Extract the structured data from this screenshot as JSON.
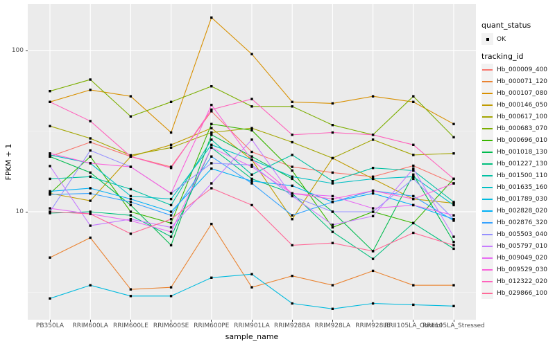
{
  "figure": {
    "y_axis": {
      "title": "FPKM + 1",
      "tick_labels": [
        "100",
        "10"
      ],
      "tick_values": [
        100,
        10
      ],
      "scale": "log10"
    },
    "x_axis": {
      "title": "sample_name"
    },
    "legend": {
      "quant_status": {
        "title": "quant_status",
        "items": [
          {
            "label": "OK",
            "glyph": "black-square-point"
          }
        ]
      },
      "tracking_id": {
        "title": "tracking_id"
      }
    },
    "colors": {
      "panel_background": "#EBEBEB",
      "gridline": "#FFFFFF",
      "point": "#000000",
      "axis_text": "#4D4D4D"
    }
  },
  "chart_data": {
    "type": "line",
    "title": "",
    "xlabel": "sample_name",
    "ylabel": "FPKM + 1",
    "y_scale": "log10",
    "ylim": [
      2.1,
      200
    ],
    "grid": "white major gridlines at 10 and 100, minor at 3.16 and 31.6, vertical major per category",
    "legend_position": "right",
    "point_shape": "filled-black-square",
    "categories": [
      "PB350LA",
      "RRIM600LA",
      "RRIM600LE",
      "RRIM600SE",
      "RRIM600PE",
      "RRIM901LA",
      "RRIM928BA",
      "RRIM928LA",
      "RRIM928LE",
      "RRII105LA_Control",
      "RRII105LA_Stressed"
    ],
    "series": [
      {
        "name": "Hb_000009_400",
        "color": "#F8766D",
        "values": [
          22,
          27,
          22,
          19,
          42,
          23.5,
          19,
          17.5,
          16.5,
          19.3,
          15
        ]
      },
      {
        "name": "Hb_000071_120",
        "color": "#EA8331",
        "values": [
          5.2,
          6.9,
          3.3,
          3.4,
          8.4,
          3.4,
          4.0,
          3.5,
          4.3,
          3.5,
          3.5
        ]
      },
      {
        "name": "Hb_000107_080",
        "color": "#D89000",
        "values": [
          48,
          57,
          52,
          31,
          160,
          95,
          48,
          47,
          52,
          48,
          35
        ]
      },
      {
        "name": "Hb_000146_050",
        "color": "#C09B00",
        "values": [
          13,
          11.7,
          22,
          26,
          33,
          21,
          9,
          21.5,
          16,
          12,
          11.3
        ]
      },
      {
        "name": "Hb_000617_100",
        "color": "#A3A500",
        "values": [
          34,
          28.5,
          22.4,
          25,
          31,
          33,
          27,
          21.5,
          28,
          22.5,
          23
        ]
      },
      {
        "name": "Hb_000683_070",
        "color": "#7CAE00",
        "values": [
          56,
          66,
          39,
          48,
          60,
          45,
          45,
          34.5,
          30,
          52,
          29
        ]
      },
      {
        "name": "Hb_000696_010",
        "color": "#39B600",
        "values": [
          13,
          22,
          10,
          8.5,
          35,
          32,
          18,
          8,
          10,
          8.5,
          16
        ]
      },
      {
        "name": "Hb_001018_130",
        "color": "#00BB4E",
        "values": [
          22,
          17.5,
          11,
          6.2,
          30,
          22,
          16,
          10,
          5.7,
          17,
          6.5
        ]
      },
      {
        "name": "Hb_001227_130",
        "color": "#00BF7D",
        "values": [
          9.8,
          10,
          9.5,
          7,
          25,
          16,
          13,
          7.5,
          5.1,
          8.5,
          5.9
        ]
      },
      {
        "name": "Hb_001500_110",
        "color": "#00C1A3",
        "values": [
          16,
          16.5,
          13.8,
          11,
          28,
          17,
          22.5,
          15.5,
          18.7,
          18,
          11.5
        ]
      },
      {
        "name": "Hb_001635_160",
        "color": "#00BFC4",
        "values": [
          22.5,
          20,
          12.5,
          12,
          26,
          21,
          16.5,
          15,
          16,
          16.5,
          11
        ]
      },
      {
        "name": "Hb_001789_030",
        "color": "#00BADE",
        "values": [
          2.9,
          3.5,
          3.0,
          3.0,
          3.9,
          4.1,
          2.7,
          2.5,
          2.7,
          2.65,
          2.6
        ]
      },
      {
        "name": "Hb_002828_020",
        "color": "#00B0F6",
        "values": [
          13.4,
          14,
          12,
          10,
          18.5,
          15.5,
          14.5,
          11.5,
          13,
          11,
          9
        ]
      },
      {
        "name": "Hb_002876_320",
        "color": "#35A2FF",
        "values": [
          12.8,
          13,
          11.5,
          9.5,
          22,
          15,
          9.5,
          11.5,
          13.5,
          12.5,
          8.8
        ]
      },
      {
        "name": "Hb_005503_040",
        "color": "#9590FF",
        "values": [
          10,
          24,
          19,
          13,
          20,
          19.5,
          12.5,
          10,
          10,
          16,
          9
        ]
      },
      {
        "name": "Hb_005797_010",
        "color": "#C77CFF",
        "values": [
          19.2,
          8.2,
          9,
          8,
          15,
          28,
          12.5,
          8.3,
          9.4,
          18.5,
          7
        ]
      },
      {
        "name": "Hb_009049_020",
        "color": "#E76BF3",
        "values": [
          10.5,
          9.7,
          8.8,
          7.5,
          25,
          19,
          13,
          12.5,
          10.5,
          11,
          9.5
        ]
      },
      {
        "name": "Hb_009529_030",
        "color": "#FA62DB",
        "values": [
          23,
          20,
          19,
          13,
          46,
          21,
          13,
          12,
          13.5,
          12,
          15
        ]
      },
      {
        "name": "Hb_012322_020",
        "color": "#FF62BC",
        "values": [
          48,
          36.5,
          22,
          18.7,
          43,
          50,
          30,
          31,
          30,
          26,
          16
        ]
      },
      {
        "name": "Hb_029866_100",
        "color": "#FF6A98",
        "values": [
          10,
          9.7,
          7.3,
          9,
          14,
          11,
          6.2,
          6.4,
          5.7,
          7.4,
          6.2
        ]
      }
    ]
  }
}
